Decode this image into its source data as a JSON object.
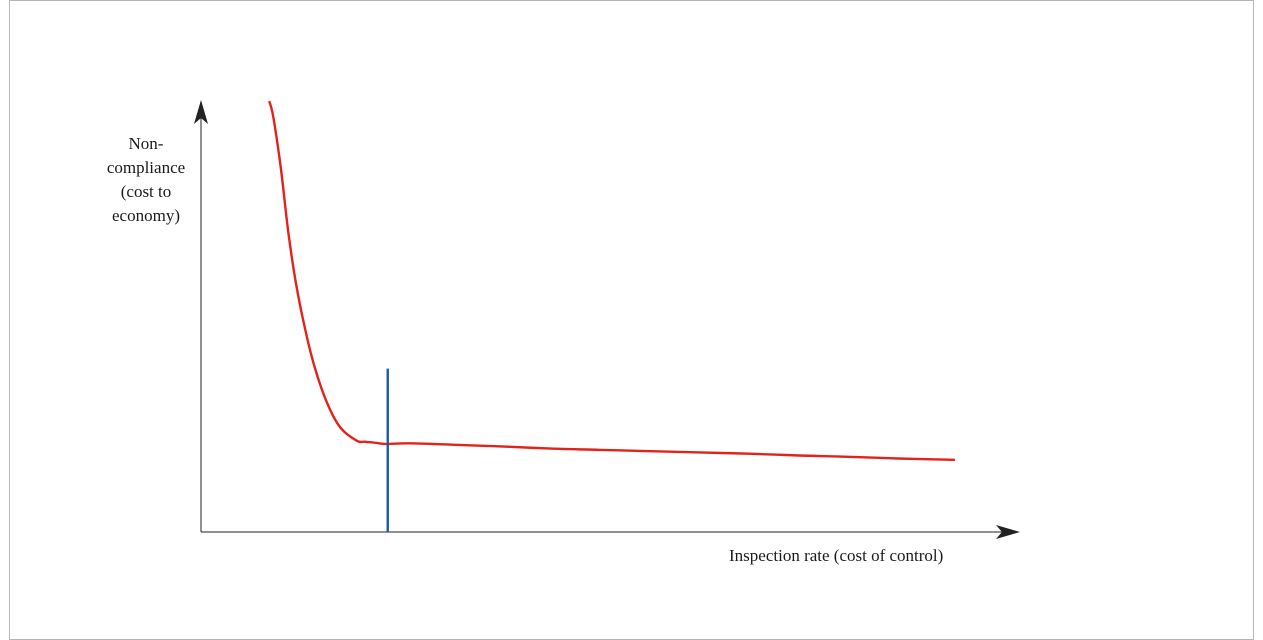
{
  "chart_data": {
    "type": "line",
    "title": "",
    "xlabel": "Inspection rate (cost of control)",
    "ylabel_lines": [
      "Non-",
      "compliance",
      "(cost to",
      "economy)"
    ],
    "axis_ticks": false,
    "grid": false,
    "xlim": [
      0,
      100
    ],
    "ylim": [
      0,
      100
    ],
    "series": [
      {
        "color": "#e2231a",
        "x": [
          9.1,
          9.6,
          10.6,
          11.6,
          12.6,
          13.9,
          15.2,
          16.8,
          18.5,
          20.7,
          21.7,
          22.9,
          24.4,
          26.5,
          28.5,
          30.8,
          34.7,
          39.9,
          46.5,
          53.1,
          59.7,
          66.2,
          72.8,
          79.4,
          86.0,
          92.6,
          100
        ],
        "y": [
          100,
          96.5,
          84.7,
          69.7,
          57.9,
          46.6,
          37.7,
          29.8,
          24.3,
          21.2,
          21.0,
          20.8,
          20.5,
          20.6,
          20.6,
          20.5,
          20.2,
          19.9,
          19.4,
          19.1,
          18.8,
          18.5,
          18.2,
          17.8,
          17.5,
          17.1,
          16.8
        ]
      }
    ],
    "markers": [
      {
        "type": "vertical-line",
        "x": 24.8,
        "y_top": 38.0,
        "color": "#1f5aa0"
      }
    ]
  }
}
